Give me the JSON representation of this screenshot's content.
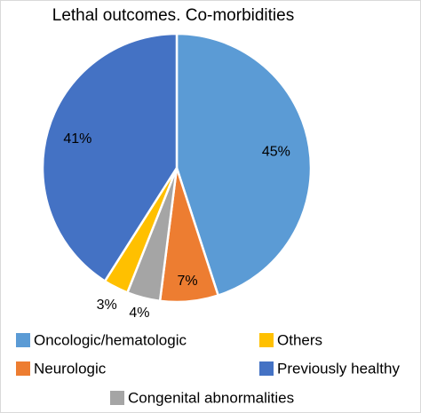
{
  "chart_data": {
    "type": "pie",
    "title": "Lethal outcomes. Co-morbidities",
    "categories": [
      "Oncologic/hematologic",
      "Neurologic",
      "Congenital abnormalities",
      "Others",
      "Previously healthy"
    ],
    "values": [
      45,
      7,
      4,
      3,
      41
    ],
    "value_labels": [
      "45%",
      "7%",
      "4%",
      "3%",
      "41%"
    ],
    "colors": [
      "#5b9bd5",
      "#ed7d31",
      "#a5a5a5",
      "#ffc000",
      "#4472c4"
    ]
  }
}
